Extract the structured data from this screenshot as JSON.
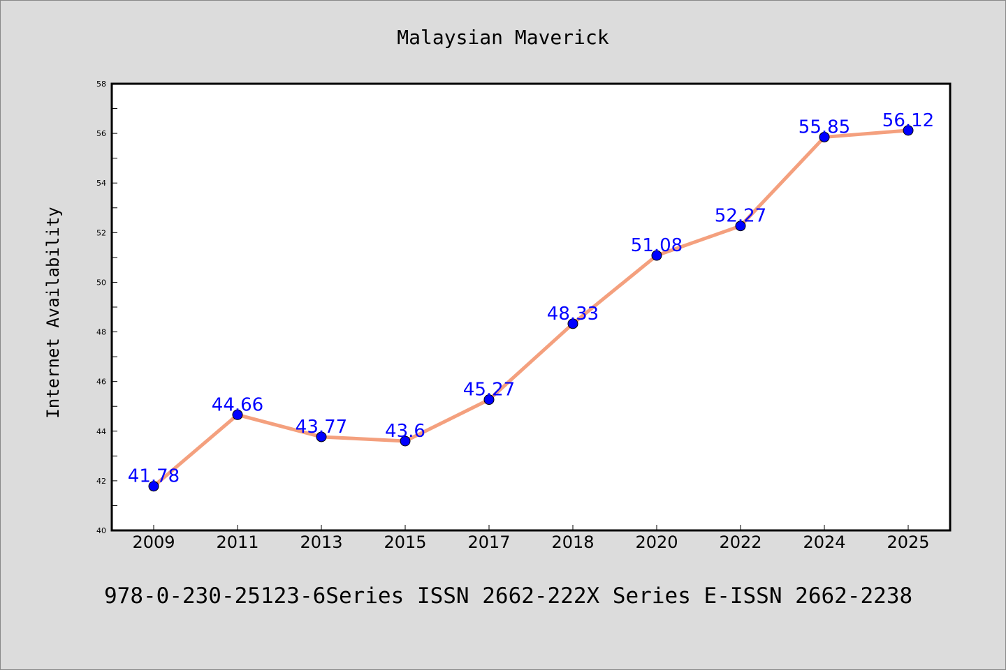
{
  "chart_data": {
    "type": "line",
    "title": "Malaysian Maverick",
    "xlabel": "",
    "ylabel": "Internet Availability",
    "categories": [
      "2009",
      "2011",
      "2013",
      "2015",
      "2017",
      "2018",
      "2020",
      "2022",
      "2024",
      "2025"
    ],
    "series": [
      {
        "values": [
          41.78,
          44.66,
          43.77,
          43.6,
          45.27,
          48.33,
          51.08,
          52.27,
          55.85,
          56.12
        ],
        "line_color": "#f4a07e",
        "marker_color": "#0000ff"
      }
    ],
    "data_labels": [
      "41.78",
      "44.66",
      "43.77",
      "43.6",
      "45.27",
      "48.33",
      "51.08",
      "52.27",
      "55.85",
      "56.12"
    ],
    "ylim": [
      40,
      58
    ],
    "yticks": [
      40,
      42,
      44,
      46,
      48,
      50,
      52,
      54,
      56,
      58
    ],
    "grid": false,
    "label_color": "#0000ff"
  },
  "footer": {
    "text": "978-0-230-25123-6Series ISSN 2662-222X Series E-ISSN 2662-2238"
  }
}
